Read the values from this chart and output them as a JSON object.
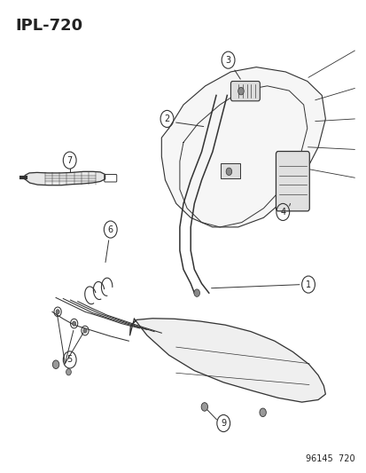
{
  "title": "IPL-720",
  "footer": "96145  720",
  "background_color": "#ffffff",
  "line_color": "#333333",
  "text_color": "#222222",
  "fig_width": 4.14,
  "fig_height": 5.33,
  "dpi": 100
}
